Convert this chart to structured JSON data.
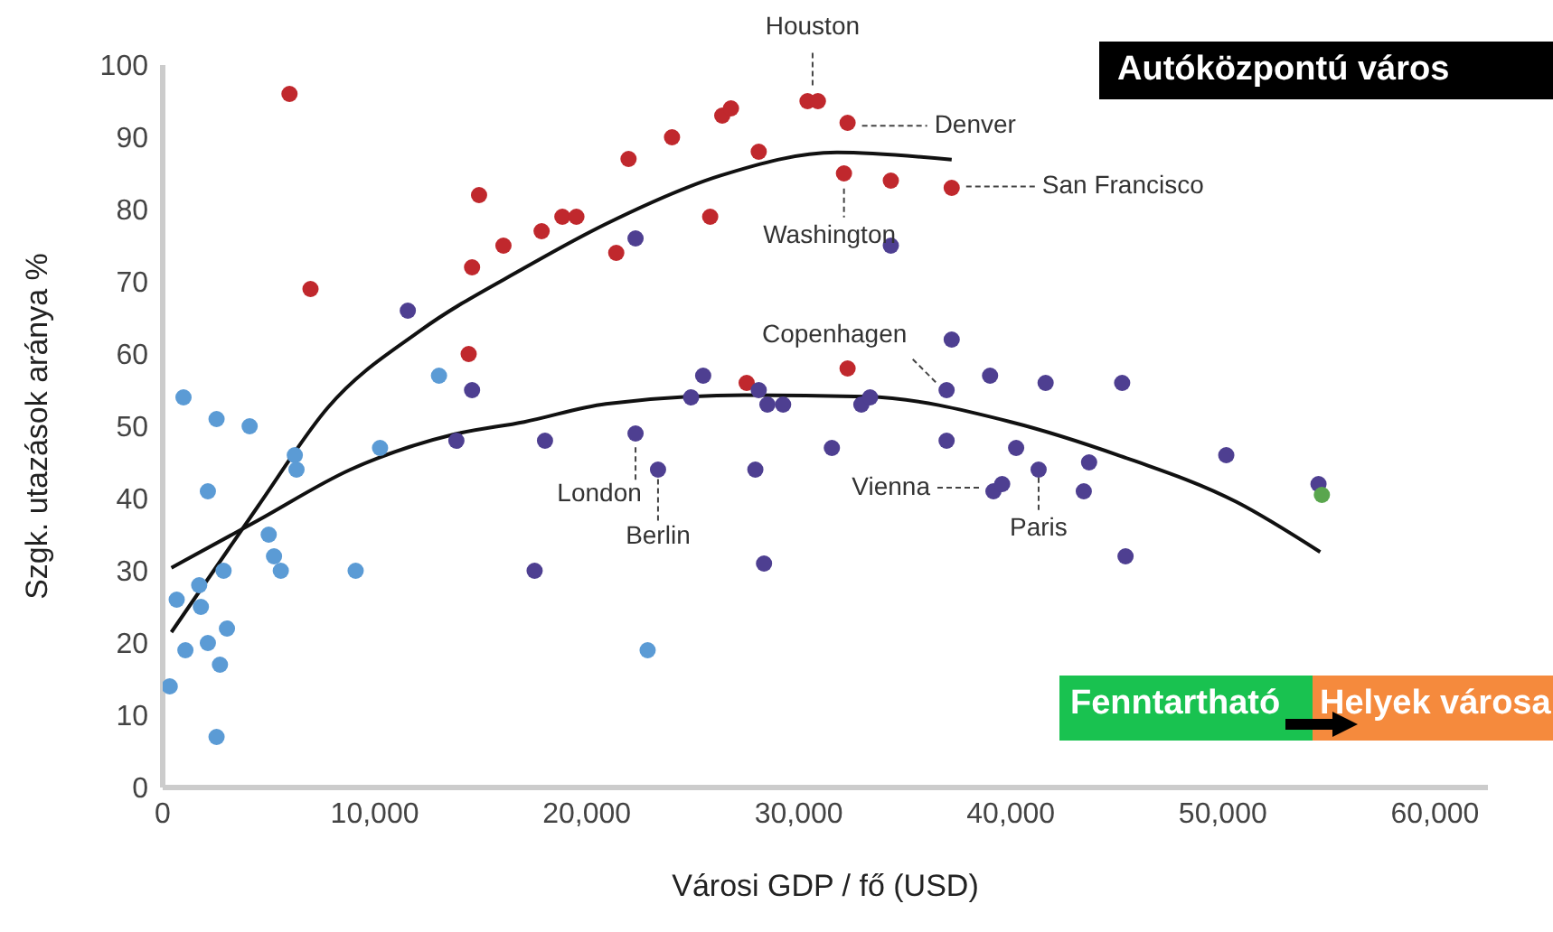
{
  "chart_data": {
    "type": "scatter",
    "xlabel": "Városi GDP / fő (USD)",
    "ylabel": "Szgk. utazások aránya %",
    "xlim": [
      0,
      62500
    ],
    "ylim": [
      0,
      100
    ],
    "xticks": [
      0,
      {
        "value": 10000,
        "label": "10,000"
      },
      {
        "value": 20000,
        "label": "20,000"
      },
      {
        "value": 30000,
        "label": "30,000"
      },
      {
        "value": 40000,
        "label": "40,000"
      },
      {
        "value": 50000,
        "label": "50,000"
      },
      {
        "value": 60000,
        "label": "60,000"
      }
    ],
    "yticks": [
      0,
      10,
      20,
      30,
      40,
      50,
      60,
      70,
      80,
      90,
      100
    ],
    "grid": false,
    "legend": false,
    "marker": "circle",
    "series": [
      {
        "color": "#5b9bd5",
        "x": [
          330,
          980,
          2540,
          4100,
          2130,
          6230,
          6310,
          5000,
          5250,
          5570,
          9100,
          10250,
          13030,
          660,
          1720,
          1800,
          2870,
          3030,
          1070,
          2130,
          2700,
          2540,
          22870
        ],
        "values": [
          14,
          54,
          51,
          50,
          41,
          46,
          44,
          35,
          32,
          30,
          30,
          47,
          57,
          26,
          28,
          25,
          30,
          22,
          19,
          20,
          17,
          7,
          19
        ]
      },
      {
        "color": "#c0282d",
        "x": [
          5980,
          6970,
          14920,
          16070,
          14590,
          14430,
          17870,
          18850,
          19510,
          21390,
          21970,
          24020,
          25820,
          26390,
          26800,
          28110,
          30410,
          30900,
          32300,
          32130,
          34340,
          37210,
          32300,
          27540
        ],
        "values": [
          96,
          69,
          82,
          75,
          72,
          60,
          77,
          79,
          79,
          74,
          87,
          90,
          79,
          93,
          94,
          88,
          95,
          95,
          92,
          85,
          84,
          83,
          58,
          56
        ]
      },
      {
        "color": "#4e3f91",
        "x": [
          11560,
          14590,
          13850,
          22300,
          34340,
          37210,
          25490,
          39020,
          24920,
          28110,
          28520,
          29260,
          32950,
          33360,
          36970,
          18030,
          22300,
          23360,
          27950,
          31560,
          36970,
          39180,
          39590,
          17540,
          28360,
          41640,
          45250,
          40250,
          41310,
          43690,
          43440,
          50160,
          54510,
          45410
        ],
        "values": [
          66,
          55,
          48,
          76,
          75,
          62,
          57,
          57,
          54,
          55,
          53,
          53,
          53,
          54,
          55,
          48,
          49,
          44,
          44,
          47,
          48,
          41,
          42,
          30,
          31,
          56,
          56,
          47,
          44,
          45,
          41,
          46,
          42,
          32
        ]
      },
      {
        "color": "#5aa64e",
        "x": [
          54670
        ],
        "values": [
          40.5
        ]
      },
      {
        "type": "line",
        "marker": "none",
        "color": "#111111",
        "x": [
          410,
          4510,
          7790,
          12130,
          17050,
          20900,
          26310,
          31800,
          37210
        ],
        "values": [
          21.5,
          39,
          52.6,
          63.2,
          71.9,
          78,
          84.7,
          87.9,
          86.9
        ]
      },
      {
        "type": "line",
        "marker": "none",
        "color": "#111111",
        "x": [
          410,
          4510,
          8850,
          13770,
          17050,
          20900,
          27460,
          33200,
          40000,
          45160,
          50660,
          54590
        ],
        "values": [
          30.4,
          37,
          44,
          48.9,
          50.6,
          53.1,
          54.3,
          54.1,
          50.6,
          45.9,
          39.5,
          32.6
        ]
      }
    ],
    "annotations": [
      {
        "text": "Houston",
        "x": 30650,
        "y": 95.2
      },
      {
        "text": "Denver",
        "x": 32300,
        "y": 91.6
      },
      {
        "text": "San Francisco",
        "x": 37210,
        "y": 83.2
      },
      {
        "text": "Washington",
        "x": 32130,
        "y": 84.9
      },
      {
        "text": "Copenhagen",
        "x": 36970,
        "y": 54.6
      },
      {
        "text": "London",
        "x": 22300,
        "y": 49.1
      },
      {
        "text": "Berlin",
        "x": 23360,
        "y": 44.2
      },
      {
        "text": "Vienna",
        "x": 39180,
        "y": 41.5
      },
      {
        "text": "Paris",
        "x": 41310,
        "y": 44.4
      },
      "Autóközpontú város",
      "Fenntartható",
      "Helyek városa"
    ]
  }
}
